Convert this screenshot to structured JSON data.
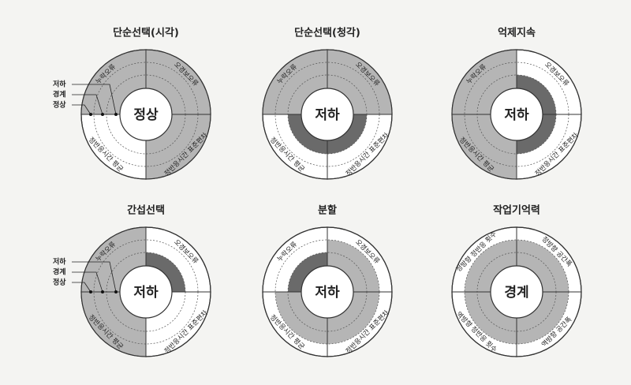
{
  "legend": [
    "저하",
    "경계",
    "정상"
  ],
  "panels": [
    {
      "title": "단순선택(시각)",
      "center": "정상",
      "labels": [
        "누락오류",
        "오경보오류",
        "정반응시간 표준편차",
        "정반응시간 평균"
      ]
    },
    {
      "title": "단순선택(청각)",
      "center": "저하",
      "labels": [
        "누락오류",
        "오경보오류",
        "정반응시간 표준편차",
        "정반응시간 평균"
      ]
    },
    {
      "title": "억제지속",
      "center": "저하",
      "labels": [
        "누락오류",
        "오경보오류",
        "정반응시간 표준편차",
        "정반응시간 평균"
      ]
    },
    {
      "title": "간섭선택",
      "center": "저하",
      "labels": [
        "누락오류",
        "오경보오류",
        "정반응시간 표준편차",
        "정반응시간 평균"
      ]
    },
    {
      "title": "분할",
      "center": "저하",
      "labels": [
        "누락오류",
        "오경보오류",
        "정반응시간 표준편차",
        "정반응시간 평균"
      ]
    },
    {
      "title": "작업기억력",
      "center": "경계",
      "labels": [
        "정방향 정반응 횟수",
        "정방향 공간폭",
        "역방향 공간폭",
        "역방향 정반응 횟수"
      ]
    }
  ]
}
